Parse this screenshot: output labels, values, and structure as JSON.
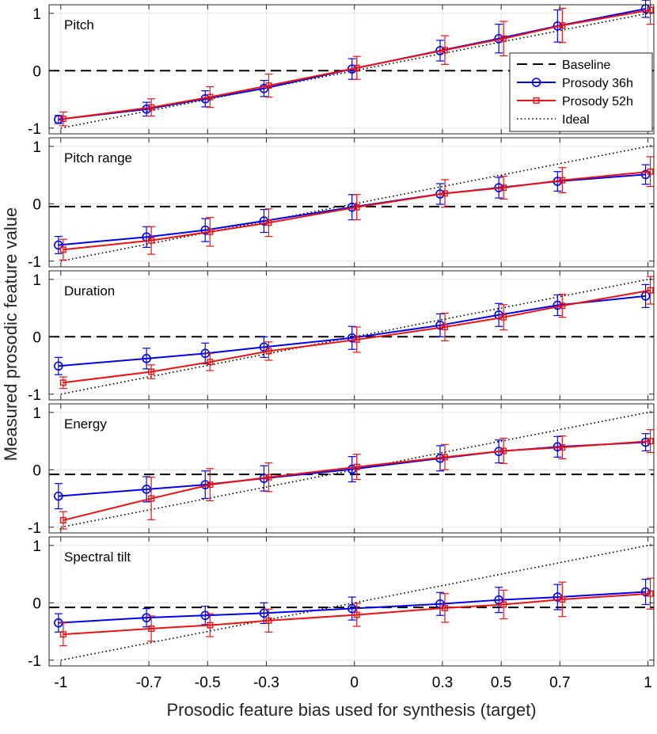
{
  "chart_data": {
    "type": "line",
    "xlabel": "Prosodic feature bias used for synthesis (target)",
    "ylabel": "Measured prosodic feature value",
    "x": [
      -1,
      -0.7,
      -0.5,
      -0.3,
      0,
      0.3,
      0.5,
      0.7,
      1
    ],
    "xticks": [
      -1,
      -0.7,
      -0.5,
      -0.3,
      0,
      0.3,
      0.5,
      0.7,
      1
    ],
    "xtick_labels": [
      "-1",
      "-0.7",
      "-0.5",
      "-0.3",
      "0",
      "0.3",
      "0.5",
      "0.7",
      "1"
    ],
    "xlim": [
      -1.04,
      1.02
    ],
    "ylim": [
      -1.1,
      1.15
    ],
    "yticks": [
      -1,
      0,
      1
    ],
    "ytick_labels": [
      "-1",
      "0",
      "1"
    ],
    "grid": true,
    "legend": {
      "location": "top-right of first panel",
      "entries": [
        "Baseline",
        "Prosody 36h",
        "Prosody 52h",
        "Ideal"
      ]
    },
    "style": {
      "c36": "#0000ee",
      "c52": "#ee1111",
      "baseline": "#000000",
      "ideal": "#000000"
    },
    "panels": [
      {
        "title": "Pitch",
        "baseline": 0.0,
        "series": [
          {
            "name": "Prosody 36h",
            "values": [
              -0.85,
              -0.67,
              -0.49,
              -0.31,
              0.03,
              0.35,
              0.56,
              0.78,
              1.08
            ],
            "err": [
              0.07,
              0.12,
              0.14,
              0.14,
              0.18,
              0.18,
              0.25,
              0.28,
              0.15
            ]
          },
          {
            "name": "Prosody 52h",
            "values": [
              -0.84,
              -0.64,
              -0.46,
              -0.26,
              0.05,
              0.36,
              0.56,
              0.79,
              1.06
            ],
            "err": [
              0.12,
              0.15,
              0.18,
              0.2,
              0.2,
              0.25,
              0.3,
              0.3,
              0.25
            ]
          }
        ]
      },
      {
        "title": "Pitch range",
        "baseline": -0.05,
        "series": [
          {
            "name": "Prosody 36h",
            "values": [
              -0.72,
              -0.58,
              -0.46,
              -0.3,
              -0.06,
              0.17,
              0.28,
              0.39,
              0.51
            ],
            "err": [
              0.15,
              0.18,
              0.2,
              0.2,
              0.22,
              0.18,
              0.18,
              0.17,
              0.17
            ]
          },
          {
            "name": "Prosody 52h",
            "values": [
              -0.8,
              -0.64,
              -0.49,
              -0.33,
              -0.06,
              0.18,
              0.28,
              0.41,
              0.56
            ],
            "err": [
              0.18,
              0.24,
              0.25,
              0.24,
              0.22,
              0.24,
              0.2,
              0.22,
              0.26
            ]
          }
        ]
      },
      {
        "title": "Duration",
        "baseline": 0.0,
        "series": [
          {
            "name": "Prosody 36h",
            "values": [
              -0.51,
              -0.38,
              -0.29,
              -0.18,
              -0.02,
              0.2,
              0.38,
              0.55,
              0.71
            ],
            "err": [
              0.15,
              0.18,
              0.18,
              0.18,
              0.2,
              0.2,
              0.2,
              0.18,
              0.2
            ]
          },
          {
            "name": "Prosody 52h",
            "values": [
              -0.8,
              -0.61,
              -0.44,
              -0.25,
              -0.05,
              0.17,
              0.34,
              0.54,
              0.81
            ],
            "err": [
              0.1,
              0.12,
              0.15,
              0.16,
              0.22,
              0.24,
              0.22,
              0.2,
              0.24
            ]
          }
        ]
      },
      {
        "title": "Energy",
        "baseline": -0.08,
        "series": [
          {
            "name": "Prosody 36h",
            "values": [
              -0.46,
              -0.34,
              -0.26,
              -0.15,
              0.01,
              0.2,
              0.32,
              0.4,
              0.48
            ],
            "err": [
              0.22,
              0.22,
              0.24,
              0.22,
              0.22,
              0.22,
              0.2,
              0.18,
              0.15
            ]
          },
          {
            "name": "Prosody 52h",
            "values": [
              -0.88,
              -0.5,
              -0.26,
              -0.13,
              0.05,
              0.22,
              0.33,
              0.39,
              0.5
            ],
            "err": [
              0.15,
              0.37,
              0.28,
              0.25,
              0.22,
              0.22,
              0.22,
              0.2,
              0.2
            ]
          }
        ]
      },
      {
        "title": "Spectral tilt",
        "baseline": -0.08,
        "series": [
          {
            "name": "Prosody 36h",
            "values": [
              -0.35,
              -0.26,
              -0.22,
              -0.18,
              -0.1,
              -0.02,
              0.05,
              0.1,
              0.19
            ],
            "err": [
              0.16,
              0.16,
              0.16,
              0.18,
              0.2,
              0.2,
              0.22,
              0.22,
              0.22
            ]
          },
          {
            "name": "Prosody 52h",
            "values": [
              -0.55,
              -0.45,
              -0.39,
              -0.31,
              -0.21,
              -0.09,
              -0.03,
              0.06,
              0.16
            ],
            "err": [
              0.2,
              0.22,
              0.2,
              0.2,
              0.2,
              0.25,
              0.25,
              0.3,
              0.27
            ]
          }
        ]
      }
    ]
  }
}
